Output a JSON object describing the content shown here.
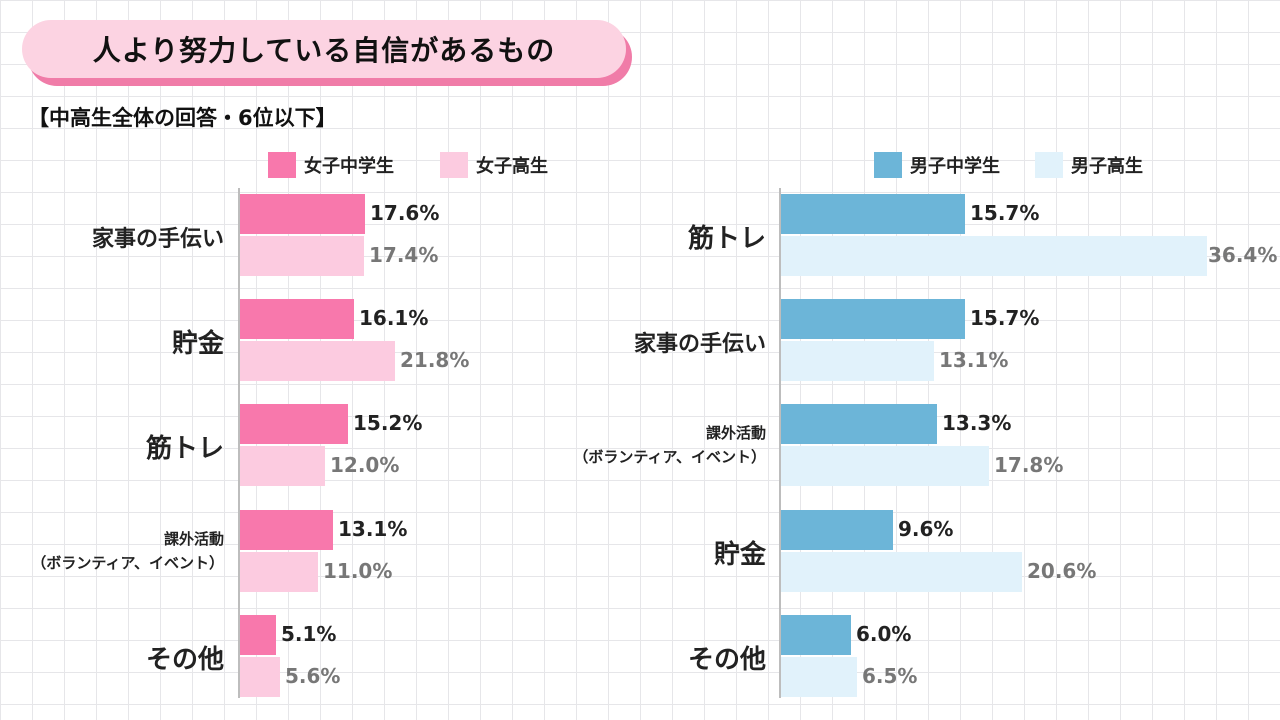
{
  "title": "人より努力している自信があるもの",
  "subtitle": "【中高生全体の回答・6位以下】",
  "chart_data": [
    {
      "type": "bar",
      "orientation": "horizontal",
      "panel": "female",
      "categories": [
        "家事の手伝い",
        "貯金",
        "筋トレ",
        "課外活動\n（ボランティア、イベント）",
        "その他"
      ],
      "series": [
        {
          "name": "女子中学生",
          "values": [
            17.6,
            16.1,
            15.2,
            13.1,
            5.1
          ],
          "labels": [
            "17.6%",
            "16.1%",
            "15.2%",
            "13.1%",
            "5.1%"
          ],
          "color": "#f878ac"
        },
        {
          "name": "女子高生",
          "values": [
            17.4,
            21.8,
            12.0,
            11.0,
            5.6
          ],
          "labels": [
            "17.4%",
            "21.8%",
            "12.0%",
            "11.0%",
            "5.6%"
          ],
          "color": "#fccbe0"
        }
      ],
      "xlim": [
        0,
        40
      ],
      "unit": "%"
    },
    {
      "type": "bar",
      "orientation": "horizontal",
      "panel": "male",
      "categories": [
        "筋トレ",
        "家事の手伝い",
        "課外活動\n（ボランティア、イベント）",
        "貯金",
        "その他"
      ],
      "series": [
        {
          "name": "男子中学生",
          "values": [
            15.7,
            15.7,
            13.3,
            9.6,
            6.0
          ],
          "labels": [
            "15.7%",
            "15.7%",
            "13.3%",
            "9.6%",
            "6.0%"
          ],
          "color": "#6cb5d8"
        },
        {
          "name": "男子高生",
          "values": [
            36.4,
            13.1,
            17.8,
            20.6,
            6.5
          ],
          "labels": [
            "36.4%",
            "13.1%",
            "17.8%",
            "20.6%",
            "6.5%"
          ],
          "color": "#e1f2fb"
        }
      ],
      "xlim": [
        0,
        40
      ],
      "unit": "%"
    }
  ]
}
